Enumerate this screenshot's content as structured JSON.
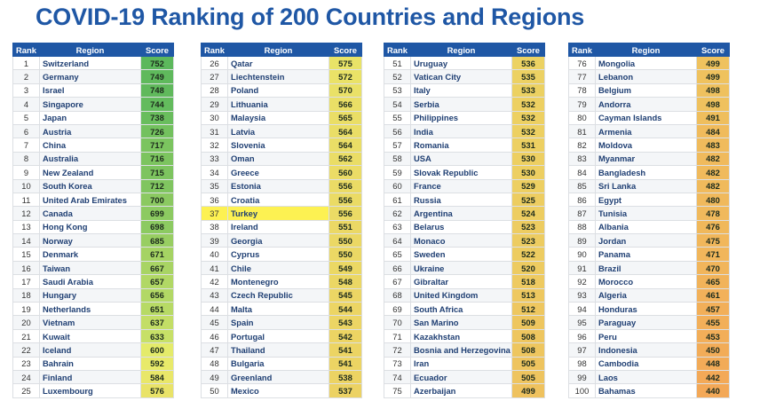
{
  "title": "COVID-19 Ranking of 200 Countries and Regions",
  "headers": {
    "rank": "Rank",
    "region": "Region",
    "score": "Score"
  },
  "highlight_color": "#fdf152",
  "header_color": "#1f57a5",
  "score_scale": {
    "high_color": "#5cb85c",
    "mid_color": "#e8ec6a",
    "low_color": "#f3a857",
    "max": 752,
    "min": 440
  },
  "tables": [
    {
      "rows": [
        {
          "rank": "1",
          "region": "Switzerland",
          "score": "752"
        },
        {
          "rank": "2",
          "region": "Germany",
          "score": "749"
        },
        {
          "rank": "3",
          "region": "Israel",
          "score": "748"
        },
        {
          "rank": "4",
          "region": "Singapore",
          "score": "744"
        },
        {
          "rank": "5",
          "region": "Japan",
          "score": "738"
        },
        {
          "rank": "6",
          "region": "Austria",
          "score": "726"
        },
        {
          "rank": "7",
          "region": "China",
          "score": "717"
        },
        {
          "rank": "8",
          "region": "Australia",
          "score": "716"
        },
        {
          "rank": "9",
          "region": "New Zealand",
          "score": "715"
        },
        {
          "rank": "10",
          "region": "South Korea",
          "score": "712"
        },
        {
          "rank": "11",
          "region": "United Arab Emirates",
          "score": "700"
        },
        {
          "rank": "12",
          "region": "Canada",
          "score": "699"
        },
        {
          "rank": "13",
          "region": "Hong Kong",
          "score": "698"
        },
        {
          "rank": "14",
          "region": "Norway",
          "score": "685"
        },
        {
          "rank": "15",
          "region": "Denmark",
          "score": "671"
        },
        {
          "rank": "16",
          "region": "Taiwan",
          "score": "667"
        },
        {
          "rank": "17",
          "region": "Saudi Arabia",
          "score": "657"
        },
        {
          "rank": "18",
          "region": "Hungary",
          "score": "656"
        },
        {
          "rank": "19",
          "region": "Netherlands",
          "score": "651"
        },
        {
          "rank": "20",
          "region": "Vietnam",
          "score": "637"
        },
        {
          "rank": "21",
          "region": "Kuwait",
          "score": "633"
        },
        {
          "rank": "22",
          "region": "Iceland",
          "score": "600"
        },
        {
          "rank": "23",
          "region": "Bahrain",
          "score": "592"
        },
        {
          "rank": "24",
          "region": "Finland",
          "score": "584"
        },
        {
          "rank": "25",
          "region": "Luxembourg",
          "score": "576"
        }
      ]
    },
    {
      "rows": [
        {
          "rank": "26",
          "region": "Qatar",
          "score": "575"
        },
        {
          "rank": "27",
          "region": "Liechtenstein",
          "score": "572"
        },
        {
          "rank": "28",
          "region": "Poland",
          "score": "570"
        },
        {
          "rank": "29",
          "region": "Lithuania",
          "score": "566"
        },
        {
          "rank": "30",
          "region": "Malaysia",
          "score": "565"
        },
        {
          "rank": "31",
          "region": "Latvia",
          "score": "564"
        },
        {
          "rank": "32",
          "region": "Slovenia",
          "score": "564"
        },
        {
          "rank": "33",
          "region": "Oman",
          "score": "562"
        },
        {
          "rank": "34",
          "region": "Greece",
          "score": "560"
        },
        {
          "rank": "35",
          "region": "Estonia",
          "score": "556"
        },
        {
          "rank": "36",
          "region": "Croatia",
          "score": "556"
        },
        {
          "rank": "37",
          "region": "Turkey",
          "score": "556",
          "highlight": true
        },
        {
          "rank": "38",
          "region": "Ireland",
          "score": "551"
        },
        {
          "rank": "39",
          "region": "Georgia",
          "score": "550"
        },
        {
          "rank": "40",
          "region": "Cyprus",
          "score": "550"
        },
        {
          "rank": "41",
          "region": "Chile",
          "score": "549"
        },
        {
          "rank": "42",
          "region": "Montenegro",
          "score": "548"
        },
        {
          "rank": "43",
          "region": "Czech Republic",
          "score": "545"
        },
        {
          "rank": "44",
          "region": "Malta",
          "score": "544"
        },
        {
          "rank": "45",
          "region": "Spain",
          "score": "543"
        },
        {
          "rank": "46",
          "region": "Portugal",
          "score": "542"
        },
        {
          "rank": "47",
          "region": "Thailand",
          "score": "541"
        },
        {
          "rank": "48",
          "region": "Bulgaria",
          "score": "541"
        },
        {
          "rank": "49",
          "region": "Greenland",
          "score": "538"
        },
        {
          "rank": "50",
          "region": "Mexico",
          "score": "537"
        }
      ]
    },
    {
      "rows": [
        {
          "rank": "51",
          "region": "Uruguay",
          "score": "536"
        },
        {
          "rank": "52",
          "region": "Vatican City",
          "score": "535"
        },
        {
          "rank": "53",
          "region": "Italy",
          "score": "533"
        },
        {
          "rank": "54",
          "region": "Serbia",
          "score": "532"
        },
        {
          "rank": "55",
          "region": "Philippines",
          "score": "532"
        },
        {
          "rank": "56",
          "region": "India",
          "score": "532"
        },
        {
          "rank": "57",
          "region": "Romania",
          "score": "531"
        },
        {
          "rank": "58",
          "region": "USA",
          "score": "530"
        },
        {
          "rank": "59",
          "region": "Slovak Republic",
          "score": "530"
        },
        {
          "rank": "60",
          "region": "France",
          "score": "529"
        },
        {
          "rank": "61",
          "region": "Russia",
          "score": "525"
        },
        {
          "rank": "62",
          "region": "Argentina",
          "score": "524"
        },
        {
          "rank": "63",
          "region": "Belarus",
          "score": "523"
        },
        {
          "rank": "64",
          "region": "Monaco",
          "score": "523"
        },
        {
          "rank": "65",
          "region": "Sweden",
          "score": "522"
        },
        {
          "rank": "66",
          "region": "Ukraine",
          "score": "520"
        },
        {
          "rank": "67",
          "region": "Gibraltar",
          "score": "518"
        },
        {
          "rank": "68",
          "region": "United Kingdom",
          "score": "513"
        },
        {
          "rank": "69",
          "region": "South Africa",
          "score": "512"
        },
        {
          "rank": "70",
          "region": "San Marino",
          "score": "509"
        },
        {
          "rank": "71",
          "region": "Kazakhstan",
          "score": "508"
        },
        {
          "rank": "72",
          "region": "Bosnia and Herzegovina",
          "score": "508"
        },
        {
          "rank": "73",
          "region": "Iran",
          "score": "505"
        },
        {
          "rank": "74",
          "region": "Ecuador",
          "score": "505"
        },
        {
          "rank": "75",
          "region": "Azerbaijan",
          "score": "499"
        }
      ]
    },
    {
      "rows": [
        {
          "rank": "76",
          "region": "Mongolia",
          "score": "499"
        },
        {
          "rank": "77",
          "region": "Lebanon",
          "score": "499"
        },
        {
          "rank": "78",
          "region": "Belgium",
          "score": "498"
        },
        {
          "rank": "79",
          "region": "Andorra",
          "score": "498"
        },
        {
          "rank": "80",
          "region": "Cayman Islands",
          "score": "491"
        },
        {
          "rank": "81",
          "region": "Armenia",
          "score": "484"
        },
        {
          "rank": "82",
          "region": "Moldova",
          "score": "483"
        },
        {
          "rank": "83",
          "region": "Myanmar",
          "score": "482"
        },
        {
          "rank": "84",
          "region": "Bangladesh",
          "score": "482"
        },
        {
          "rank": "85",
          "region": "Sri Lanka",
          "score": "482"
        },
        {
          "rank": "86",
          "region": "Egypt",
          "score": "480"
        },
        {
          "rank": "87",
          "region": "Tunisia",
          "score": "478"
        },
        {
          "rank": "88",
          "region": "Albania",
          "score": "476"
        },
        {
          "rank": "89",
          "region": "Jordan",
          "score": "475"
        },
        {
          "rank": "90",
          "region": "Panama",
          "score": "471"
        },
        {
          "rank": "91",
          "region": "Brazil",
          "score": "470"
        },
        {
          "rank": "92",
          "region": "Morocco",
          "score": "465"
        },
        {
          "rank": "93",
          "region": "Algeria",
          "score": "461"
        },
        {
          "rank": "94",
          "region": "Honduras",
          "score": "457"
        },
        {
          "rank": "95",
          "region": "Paraguay",
          "score": "455"
        },
        {
          "rank": "96",
          "region": "Peru",
          "score": "453"
        },
        {
          "rank": "97",
          "region": "Indonesia",
          "score": "450"
        },
        {
          "rank": "98",
          "region": "Cambodia",
          "score": "448"
        },
        {
          "rank": "99",
          "region": "Laos",
          "score": "442"
        },
        {
          "rank": "100",
          "region": "Bahamas",
          "score": "440"
        }
      ]
    }
  ]
}
